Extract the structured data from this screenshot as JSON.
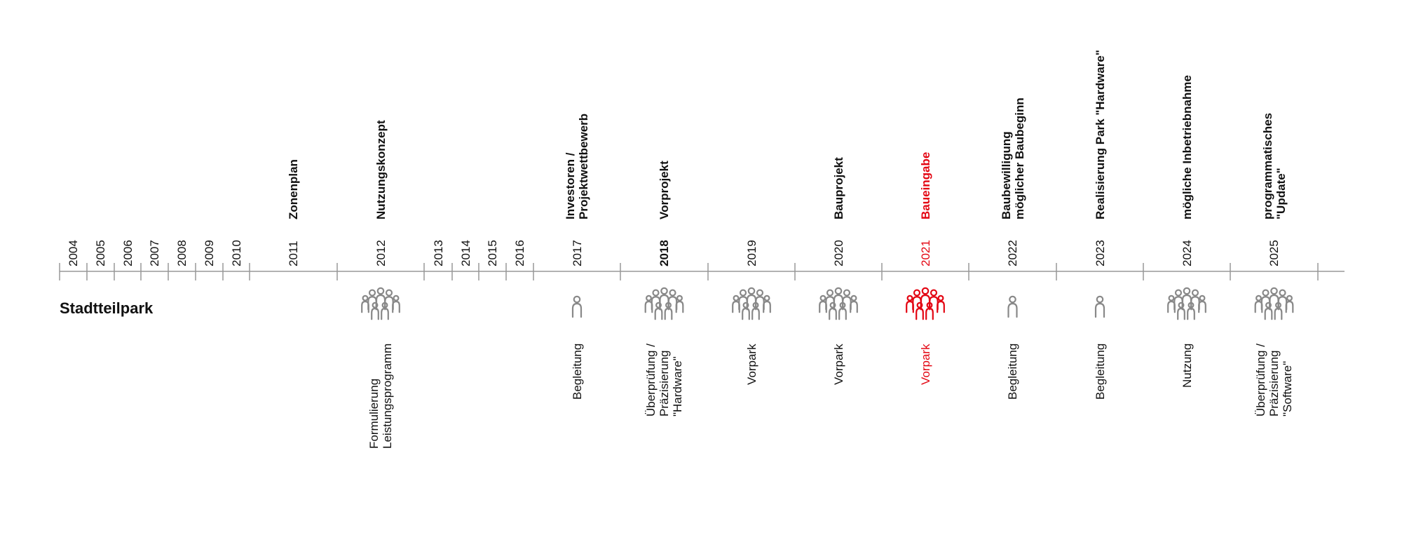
{
  "row_label": "Stadtteilpark",
  "colors": {
    "default": "#888888",
    "highlight": "#e30613",
    "text": "#111111"
  },
  "years": [
    {
      "year": "2004"
    },
    {
      "year": "2005"
    },
    {
      "year": "2006"
    },
    {
      "year": "2007"
    },
    {
      "year": "2008"
    },
    {
      "year": "2009"
    },
    {
      "year": "2010"
    },
    {
      "year": "2011",
      "milestone": [
        "Zonenplan"
      ]
    },
    {
      "year": "2012",
      "milestone": [
        "Nutzungskonzept"
      ],
      "icon": "group-icon",
      "activities": [
        {
          "lines": [
            "Formulierung",
            "Leistungsprogramm"
          ]
        }
      ]
    },
    {
      "year": "2013"
    },
    {
      "year": "2014"
    },
    {
      "year": "2015"
    },
    {
      "year": "2016"
    },
    {
      "year": "2017",
      "milestone": [
        "Investoren /",
        "Projektwettbewerb"
      ],
      "icon": "person-icon",
      "activities": [
        {
          "lines": [
            "Begleitung"
          ]
        }
      ]
    },
    {
      "year": "2018",
      "bold": true,
      "milestone": [
        "Vorprojekt"
      ],
      "icon": "group-icon",
      "activities": [
        {
          "lines": [
            "Überprüfung /",
            "Präzisierung",
            "\"Hardware\""
          ]
        }
      ]
    },
    {
      "year": "2019",
      "icon": "group-icon",
      "activities": [
        {
          "lines": [
            "Vorpark"
          ]
        }
      ]
    },
    {
      "year": "2020",
      "milestone": [
        "Bauprojekt"
      ],
      "icon": "group-icon",
      "activities": [
        {
          "lines": [
            "Vorpark"
          ]
        }
      ]
    },
    {
      "year": "2021",
      "highlight": true,
      "milestone": [
        "Baueingabe"
      ],
      "icon": "group-icon",
      "activities": [
        {
          "lines": [
            "Vorpark"
          ]
        }
      ]
    },
    {
      "year": "2022",
      "milestone": [
        "Baubewilligung",
        "möglicher Baubeginn"
      ],
      "icon": "person-icon",
      "activities": [
        {
          "lines": [
            "Begleitung"
          ]
        }
      ]
    },
    {
      "year": "2023",
      "milestone": [
        "Realisierung Park \"Hardware\""
      ],
      "icon": "person-icon",
      "activities": [
        {
          "lines": [
            "Begleitung"
          ]
        }
      ]
    },
    {
      "year": "2024",
      "milestone": [
        "mögliche Inbetriebnahme"
      ],
      "icon": "group-icon",
      "activities": [
        {
          "lines": [
            "Nutzung"
          ]
        }
      ]
    },
    {
      "year": "2025",
      "milestone": [
        "programmatisches",
        "\"Update\""
      ],
      "icon": "group-icon",
      "activities": [
        {
          "lines": [
            "Überprüfung /",
            "Präzisierung",
            "\"Software\""
          ]
        }
      ]
    }
  ]
}
